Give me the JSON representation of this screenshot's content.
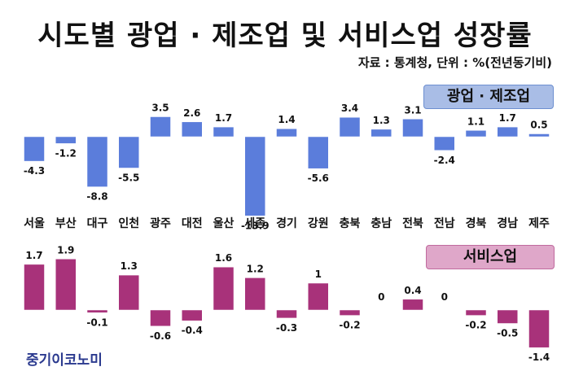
{
  "title": "시도별 광업 · 제조업 및 서비스업 성장률",
  "source": "자료 : 통계청, 단위 : %(전년동기비)",
  "logo": "중기이코노미",
  "colors": {
    "manufacturing": "#5b7ddb",
    "services": "#a8327a"
  },
  "chart_data": [
    {
      "type": "bar",
      "title": "광업 · 제조업",
      "categories": [
        "서울",
        "부산",
        "대구",
        "인천",
        "광주",
        "대전",
        "울산",
        "세종",
        "경기",
        "강원",
        "충북",
        "충남",
        "전북",
        "전남",
        "경북",
        "경남",
        "제주"
      ],
      "values": [
        -4.3,
        -1.2,
        -8.8,
        -5.5,
        3.5,
        2.6,
        1.7,
        -13.9,
        1.4,
        -5.6,
        3.4,
        1.3,
        3.1,
        -2.4,
        1.1,
        1.7,
        0.5
      ]
    },
    {
      "type": "bar",
      "title": "서비스업",
      "categories": [
        "서울",
        "부산",
        "대구",
        "인천",
        "광주",
        "대전",
        "울산",
        "세종",
        "경기",
        "강원",
        "충북",
        "충남",
        "전북",
        "전남",
        "경북",
        "경남",
        "제주"
      ],
      "values": [
        1.7,
        1.9,
        -0.1,
        1.3,
        -0.6,
        -0.4,
        1.6,
        1.2,
        -0.3,
        1,
        -0.2,
        0,
        0.4,
        0,
        -0.2,
        -0.5,
        -1.4
      ]
    }
  ]
}
